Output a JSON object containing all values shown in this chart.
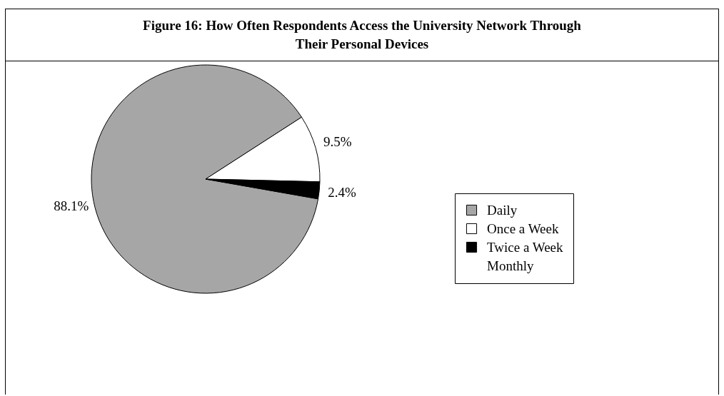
{
  "chart_data": {
    "type": "pie",
    "title": "Figure 16: How Often Respondents Access the University Network Through Their Personal Devices",
    "categories": [
      "Daily",
      "Once a Week",
      "Twice a Week",
      "Monthly"
    ],
    "values": [
      88.1,
      9.5,
      2.4,
      null
    ],
    "colors": [
      "#a6a6a6",
      "#ffffff",
      "#000000",
      "#ffffff"
    ],
    "value_labels": [
      "88.1%",
      "9.5%",
      "2.4%",
      null
    ],
    "legend": "right"
  }
}
